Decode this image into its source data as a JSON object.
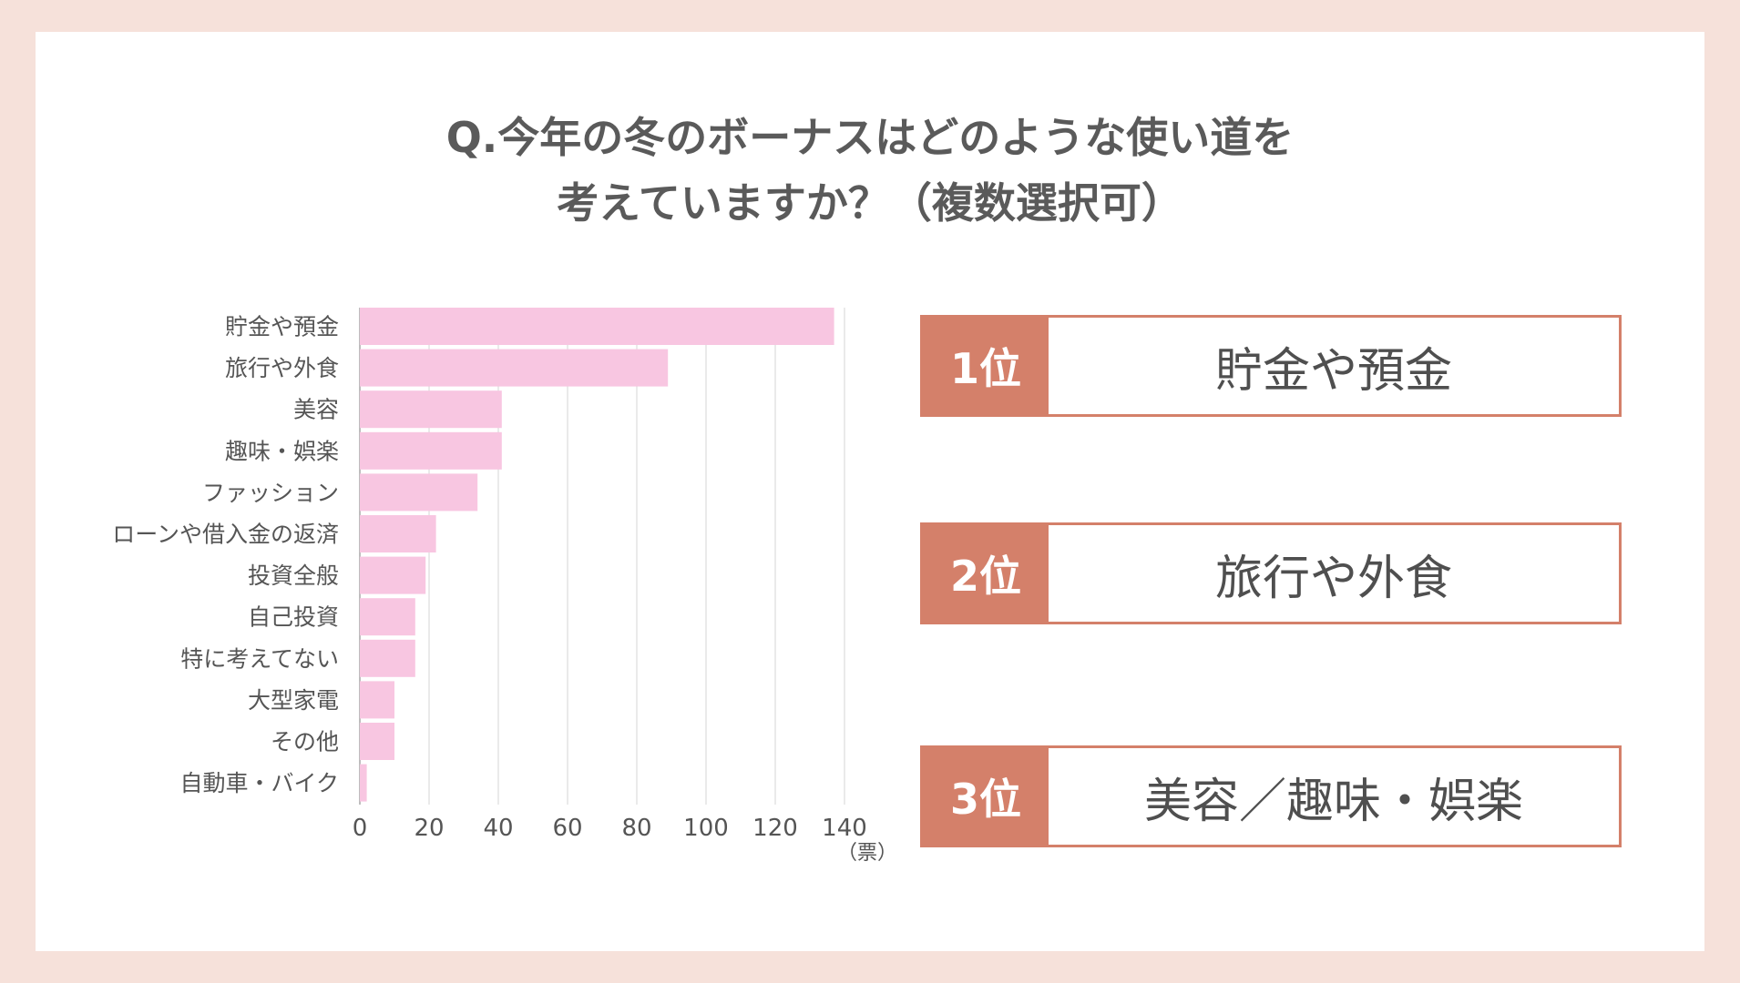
{
  "title": {
    "line1": "Q.今年の冬のボーナスはどのような使い道を",
    "line2": "考えていますか？（複数選択可）"
  },
  "chart_data": {
    "type": "bar",
    "orientation": "horizontal",
    "categories": [
      "貯金や預金",
      "旅行や外食",
      "美容",
      "趣味・娯楽",
      "ファッション",
      "ローンや借入金の返済",
      "投資全般",
      "自己投資",
      "特に考えてない",
      "大型家電",
      "その他",
      "自動車・バイク"
    ],
    "values": [
      137,
      89,
      41,
      41,
      34,
      22,
      19,
      16,
      16,
      10,
      10,
      2
    ],
    "xlim": [
      0,
      140
    ],
    "ticks": [
      0,
      20,
      40,
      60,
      80,
      100,
      120,
      140
    ],
    "unit": "（票）",
    "bar_color": "#f8c6e1",
    "grid": true
  },
  "ranking": [
    {
      "rank": "1位",
      "label": "貯金や預金"
    },
    {
      "rank": "2位",
      "label": "旅行や外食"
    },
    {
      "rank": "3位",
      "label": "美容／趣味・娯楽"
    }
  ],
  "colors": {
    "background": "#f6e1da",
    "accent": "#d4806a",
    "bar": "#f8c6e1"
  }
}
